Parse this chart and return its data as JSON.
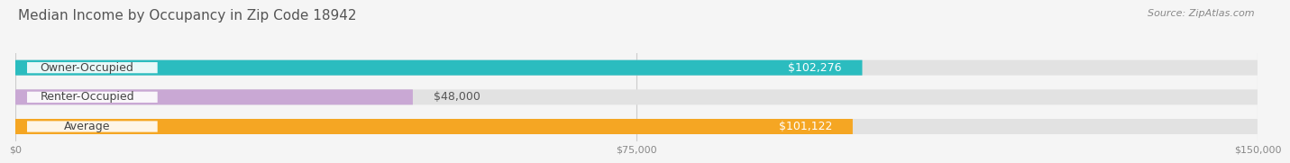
{
  "title": "Median Income by Occupancy in Zip Code 18942",
  "source": "Source: ZipAtlas.com",
  "categories": [
    "Owner-Occupied",
    "Renter-Occupied",
    "Average"
  ],
  "values": [
    102276,
    48000,
    101122
  ],
  "bar_colors": [
    "#2BBCBF",
    "#C9A8D4",
    "#F5A623"
  ],
  "label_colors": [
    "#ffffff",
    "#555555",
    "#ffffff"
  ],
  "value_labels": [
    "$102,276",
    "$48,000",
    "$101,122"
  ],
  "x_ticks": [
    0,
    75000,
    150000
  ],
  "x_tick_labels": [
    "$0",
    "$75,000",
    "$150,000"
  ],
  "xlim": [
    0,
    150000
  ],
  "bg_color": "#f5f5f5",
  "bar_bg_color": "#e2e2e2",
  "title_fontsize": 11,
  "source_fontsize": 8,
  "label_fontsize": 9,
  "value_fontsize": 9,
  "tick_fontsize": 8
}
